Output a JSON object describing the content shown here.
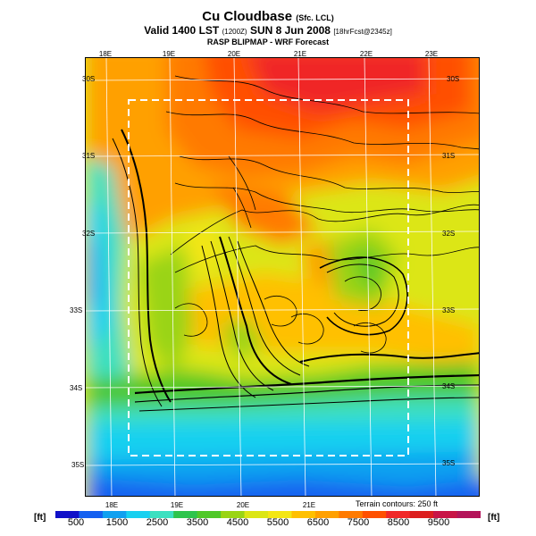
{
  "header": {
    "title": "Cu Cloudbase",
    "title_suffix": "(Sfc. LCL)",
    "valid_line": "Valid 1400 LST",
    "valid_code": "(1200Z)",
    "valid_date": "SUN 8 Jun 2008",
    "forecast_tag": "[18hrFcst@2345z]",
    "model_line": "RASP BLIPMAP - WRF Forecast"
  },
  "map": {
    "lon_labels": [
      "18E",
      "19E",
      "20E",
      "21E",
      "22E",
      "23E"
    ],
    "lat_labels_left": [
      "30S",
      "31S",
      "32S",
      "33S",
      "34S",
      "35S"
    ],
    "lat_labels_right": [
      "30S",
      "31S",
      "32S",
      "33S",
      "34S",
      "35S"
    ],
    "terrain_note": "Terrain contours: 250 ft"
  },
  "colorbar": {
    "unit": "[ft]",
    "tick_labels": [
      "500",
      "1500",
      "2500",
      "3500",
      "4500",
      "5500",
      "6500",
      "7500",
      "8500",
      "9500"
    ],
    "colors": [
      "#1010c8",
      "#1460f0",
      "#10a0f0",
      "#18d0f0",
      "#3ce0c0",
      "#2ec44c",
      "#50c828",
      "#9ad414",
      "#dce614",
      "#f4e614",
      "#ffc000",
      "#ffa000",
      "#ff7a00",
      "#ff5000",
      "#f02828",
      "#dc1e1e",
      "#c81446",
      "#b4145a"
    ]
  }
}
